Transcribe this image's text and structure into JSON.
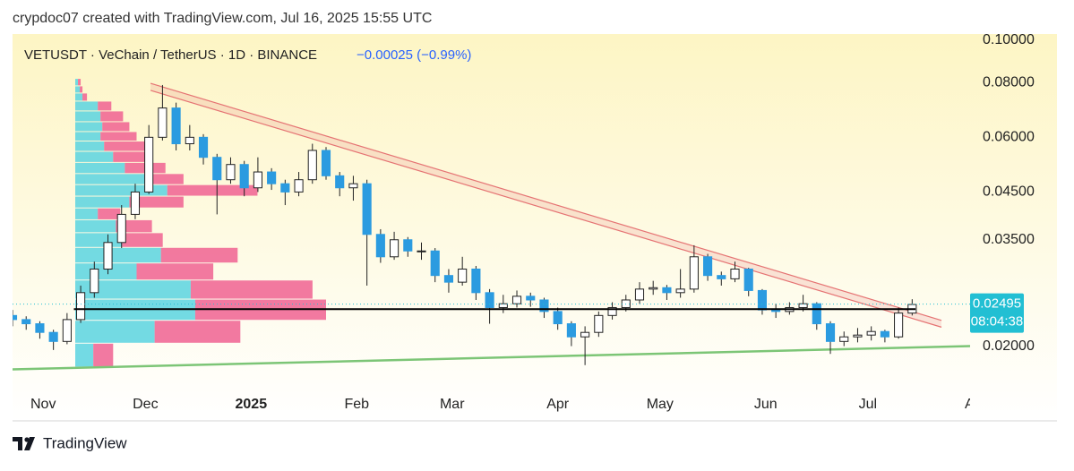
{
  "header": {
    "text": "crypdoc07 created with TradingView.com, Jul 16, 2025 15:55 UTC"
  },
  "chart_data": {
    "type": "candlestick",
    "title": "VETUSDT · VeChain / TetherUS · 1D · BINANCE",
    "subtitle": "−0.00025 (−0.99%)",
    "log_scale": true,
    "ylim": [
      0.0135,
      0.1033
    ],
    "yticks": [
      {
        "value": 0.02,
        "label": "0.02000"
      },
      {
        "value": 0.035,
        "label": "0.03500"
      },
      {
        "value": 0.045,
        "label": "0.04500"
      },
      {
        "value": 0.06,
        "label": "0.06000"
      },
      {
        "value": 0.08,
        "label": "0.08000"
      },
      {
        "value": 0.1,
        "label": "0.10000"
      }
    ],
    "xlim": [
      0,
      281
    ],
    "xticks": [
      {
        "value": 9,
        "label": "Nov"
      },
      {
        "value": 39,
        "label": "Dec"
      },
      {
        "value": 70,
        "label": "2025"
      },
      {
        "value": 101,
        "label": "Feb"
      },
      {
        "value": 129,
        "label": "Mar"
      },
      {
        "value": 160,
        "label": "Apr"
      },
      {
        "value": 190,
        "label": "May"
      },
      {
        "value": 221,
        "label": "Jun"
      },
      {
        "value": 251,
        "label": "Jul"
      },
      {
        "value": 282,
        "label": "Au"
      }
    ],
    "up_color": "#ffffff",
    "down_color": "#2b9be0",
    "wick_color": "#222222",
    "candles": {
      "x": [
        0,
        4,
        8,
        12,
        16,
        20,
        24,
        28,
        32,
        36,
        40,
        44,
        48,
        52,
        56,
        60,
        64,
        68,
        72,
        76,
        80,
        84,
        88,
        92,
        96,
        100,
        104,
        108,
        112,
        116,
        120,
        124,
        128,
        132,
        136,
        140,
        144,
        148,
        152,
        156,
        160,
        164,
        168,
        172,
        176,
        180,
        184,
        188,
        192,
        196,
        200,
        204,
        208,
        212,
        216,
        220,
        224,
        228,
        232,
        236,
        240,
        244,
        248,
        252,
        256,
        260,
        264
      ],
      "open": [
        0.0235,
        0.023,
        0.0225,
        0.0215,
        0.0205,
        0.023,
        0.0265,
        0.03,
        0.0345,
        0.04,
        0.045,
        0.06,
        0.07,
        0.058,
        0.06,
        0.054,
        0.048,
        0.052,
        0.046,
        0.05,
        0.047,
        0.045,
        0.048,
        0.056,
        0.049,
        0.046,
        0.047,
        0.036,
        0.032,
        0.035,
        0.033,
        0.033,
        0.029,
        0.028,
        0.03,
        0.0265,
        0.0245,
        0.025,
        0.026,
        0.0255,
        0.024,
        0.0225,
        0.021,
        0.0215,
        0.0235,
        0.0245,
        0.0255,
        0.027,
        0.0272,
        0.0265,
        0.027,
        0.032,
        0.029,
        0.0285,
        0.03,
        0.0268,
        0.0242,
        0.024,
        0.0245,
        0.025,
        0.0225,
        0.0205,
        0.021,
        0.0212,
        0.0216,
        0.021,
        0.0238
      ],
      "high": [
        0.0242,
        0.0234,
        0.0228,
        0.0218,
        0.0238,
        0.0275,
        0.0312,
        0.036,
        0.042,
        0.047,
        0.064,
        0.079,
        0.072,
        0.064,
        0.061,
        0.055,
        0.054,
        0.053,
        0.054,
        0.051,
        0.048,
        0.05,
        0.058,
        0.057,
        0.05,
        0.049,
        0.048,
        0.037,
        0.0365,
        0.0355,
        0.0345,
        0.0335,
        0.03,
        0.032,
        0.0305,
        0.027,
        0.0262,
        0.0268,
        0.0265,
        0.0258,
        0.0245,
        0.0228,
        0.0222,
        0.024,
        0.0252,
        0.0262,
        0.028,
        0.0282,
        0.0276,
        0.03,
        0.034,
        0.0325,
        0.0296,
        0.0312,
        0.0302,
        0.027,
        0.025,
        0.0252,
        0.0262,
        0.0252,
        0.0228,
        0.0216,
        0.022,
        0.0222,
        0.0218,
        0.0245,
        0.0256
      ],
      "low": [
        0.0222,
        0.0218,
        0.0208,
        0.0196,
        0.0202,
        0.0226,
        0.0258,
        0.0292,
        0.0335,
        0.039,
        0.0445,
        0.059,
        0.056,
        0.056,
        0.052,
        0.04,
        0.047,
        0.044,
        0.045,
        0.0455,
        0.042,
        0.044,
        0.047,
        0.048,
        0.044,
        0.043,
        0.0275,
        0.031,
        0.0315,
        0.032,
        0.0315,
        0.028,
        0.0265,
        0.0275,
        0.0255,
        0.0225,
        0.0238,
        0.0245,
        0.0246,
        0.0232,
        0.0218,
        0.02,
        0.0181,
        0.021,
        0.023,
        0.024,
        0.025,
        0.0262,
        0.0255,
        0.0258,
        0.0265,
        0.0282,
        0.0275,
        0.028,
        0.026,
        0.0236,
        0.0232,
        0.0236,
        0.024,
        0.0218,
        0.0192,
        0.02,
        0.0204,
        0.0206,
        0.0204,
        0.0208,
        0.0235
      ],
      "close": [
        0.023,
        0.0225,
        0.0215,
        0.0205,
        0.023,
        0.0265,
        0.03,
        0.0345,
        0.04,
        0.045,
        0.06,
        0.07,
        0.058,
        0.06,
        0.054,
        0.048,
        0.052,
        0.046,
        0.05,
        0.047,
        0.045,
        0.048,
        0.056,
        0.049,
        0.046,
        0.047,
        0.036,
        0.032,
        0.035,
        0.033,
        0.033,
        0.029,
        0.028,
        0.03,
        0.0265,
        0.0245,
        0.025,
        0.026,
        0.0255,
        0.024,
        0.0225,
        0.021,
        0.0215,
        0.0235,
        0.0245,
        0.0255,
        0.027,
        0.0272,
        0.0265,
        0.027,
        0.032,
        0.029,
        0.0285,
        0.03,
        0.0268,
        0.0242,
        0.024,
        0.0245,
        0.025,
        0.0225,
        0.0205,
        0.021,
        0.0212,
        0.0216,
        0.021,
        0.0238,
        0.0249
      ]
    },
    "volume_profile": {
      "up_color": "#5ad3e0",
      "down_color": "#f06292",
      "price": [
        0.0801,
        0.0772,
        0.0743,
        0.0709,
        0.067,
        0.0633,
        0.0604,
        0.0573,
        0.0542,
        0.051,
        0.0482,
        0.0454,
        0.0427,
        0.0401,
        0.0377,
        0.035,
        0.0323,
        0.0297,
        0.027,
        0.0243,
        0.0216,
        0.0191
      ],
      "up": [
        3,
        5,
        8,
        25,
        28,
        30,
        28,
        32,
        42,
        55,
        80,
        102,
        60,
        25,
        45,
        52,
        95,
        68,
        128,
        133,
        88,
        20
      ],
      "down": [
        3,
        3,
        5,
        15,
        25,
        30,
        40,
        45,
        35,
        45,
        40,
        100,
        60,
        25,
        40,
        45,
        85,
        85,
        135,
        145,
        95,
        22
      ]
    },
    "resistance_band": {
      "x": [
        40.5,
        272.6
      ],
      "upper": [
        0.0797,
        0.0229
      ],
      "lower": [
        0.0768,
        0.0221
      ],
      "color": "#e57373"
    },
    "support_line": {
      "x": [
        0,
        281
      ],
      "y": [
        0.0177,
        0.02
      ],
      "color": "#7cc576"
    },
    "level_line": {
      "x": [
        18,
        265
      ],
      "y": [
        0.0243,
        0.0243
      ],
      "color": "#000000"
    },
    "last_price": {
      "value": 0.02495,
      "label": "0.02495",
      "countdown": "08:04:38",
      "color": "#22bfd3"
    }
  },
  "footer": {
    "brand": "TradingView"
  }
}
